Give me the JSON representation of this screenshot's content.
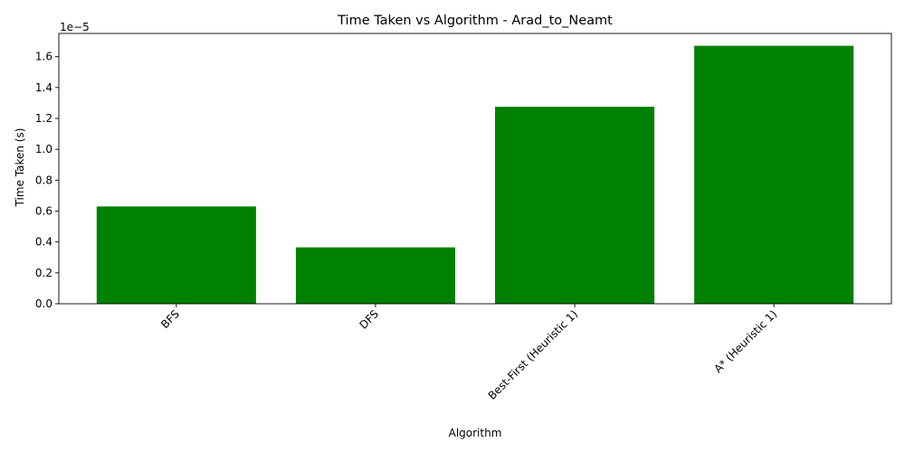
{
  "chart_data": {
    "type": "bar",
    "title": "Time Taken vs Algorithm - Arad_to_Neamt",
    "xlabel": "Algorithm",
    "ylabel": "Time Taken (s)",
    "offset_label": "1e−5",
    "scale": 1e-05,
    "categories": [
      "BFS",
      "DFS",
      "Best-First (Heuristic 1)",
      "A* (Heuristic 1)"
    ],
    "values": [
      6.3e-06,
      3.65e-06,
      1.275e-05,
      1.67e-05
    ],
    "ylim": [
      0,
      1.75e-05
    ],
    "yticks": [
      0,
      2e-06,
      4e-06,
      6e-06,
      8e-06,
      1e-05,
      1.2e-05,
      1.4e-05,
      1.6e-05
    ],
    "ytick_labels": [
      "0.0",
      "0.2",
      "0.4",
      "0.6",
      "0.8",
      "1.0",
      "1.2",
      "1.4",
      "1.6"
    ],
    "bar_color": "#008000",
    "grid": false,
    "legend": "none"
  }
}
